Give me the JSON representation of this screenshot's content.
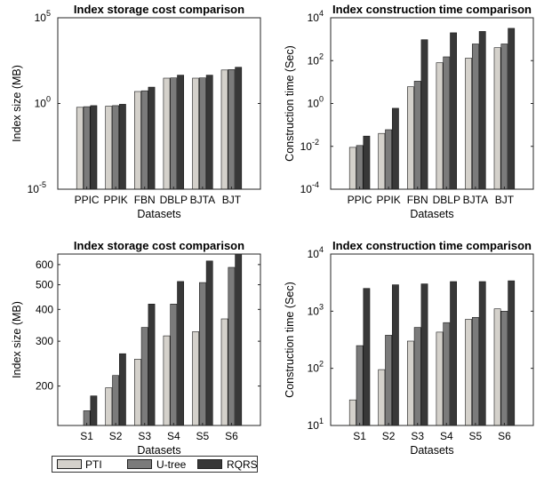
{
  "colors": {
    "PTI": "#d4d1cb",
    "U-tree": "#7b7b7b",
    "RQRS": "#383838"
  },
  "legend": {
    "items": [
      "PTI",
      "U-tree",
      "RQRS"
    ]
  },
  "chart_data": [
    {
      "type": "bar",
      "title": "Index storage cost comparison",
      "xlabel": "Datasets",
      "ylabel": "Index size (MB)",
      "yscale": "log",
      "ylim": [
        1e-05,
        100000
      ],
      "yticks": [
        {
          "value": 1e-05,
          "base": "10",
          "exp": "-5"
        },
        {
          "value": 1,
          "base": "10",
          "exp": "0"
        },
        {
          "value": 100000,
          "base": "10",
          "exp": "5"
        }
      ],
      "categories": [
        "PPIC",
        "PPIK",
        "FBN",
        "DBLP",
        "BJTA",
        "BJT"
      ],
      "series": [
        {
          "name": "PTI",
          "values": [
            0.6,
            0.7,
            5,
            30,
            30,
            90
          ]
        },
        {
          "name": "U-tree",
          "values": [
            0.65,
            0.75,
            5.5,
            31,
            31,
            95
          ]
        },
        {
          "name": "RQRS",
          "values": [
            0.75,
            0.9,
            9,
            45,
            45,
            130
          ]
        }
      ],
      "grid": false
    },
    {
      "type": "bar",
      "title": "Index construction time comparison",
      "xlabel": "Datasets",
      "ylabel": "Construction time (Sec)",
      "yscale": "log",
      "ylim": [
        0.0001,
        10000
      ],
      "yticks": [
        {
          "value": 0.0001,
          "base": "10",
          "exp": "-4"
        },
        {
          "value": 0.01,
          "base": "10",
          "exp": "-2"
        },
        {
          "value": 1,
          "base": "10",
          "exp": "0"
        },
        {
          "value": 100,
          "base": "10",
          "exp": "2"
        },
        {
          "value": 10000,
          "base": "10",
          "exp": "4"
        }
      ],
      "categories": [
        "PPIC",
        "PPIK",
        "FBN",
        "DBLP",
        "BJTA",
        "BJT"
      ],
      "series": [
        {
          "name": "PTI",
          "values": [
            0.009,
            0.04,
            6,
            80,
            130,
            400
          ]
        },
        {
          "name": "U-tree",
          "values": [
            0.011,
            0.06,
            11,
            150,
            600,
            600
          ]
        },
        {
          "name": "RQRS",
          "values": [
            0.03,
            0.6,
            950,
            2000,
            2300,
            3200
          ]
        }
      ],
      "grid": false
    },
    {
      "type": "bar",
      "title": "Index storage cost comparison",
      "xlabel": "Datasets",
      "ylabel": "Index size (MB)",
      "yscale": "log",
      "ylim": [
        140,
        660
      ],
      "yticks": [
        {
          "value": 200,
          "label": "200"
        },
        {
          "value": 300,
          "label": "300"
        },
        {
          "value": 400,
          "label": "400"
        },
        {
          "value": 500,
          "label": "500"
        },
        {
          "value": 600,
          "label": "600"
        }
      ],
      "categories": [
        "S1",
        "S2",
        "S3",
        "S4",
        "S5",
        "S6"
      ],
      "series": [
        {
          "name": "PTI",
          "values": [
            140,
            197,
            255,
            315,
            327,
            367
          ]
        },
        {
          "name": "U-tree",
          "values": [
            160,
            220,
            340,
            420,
            510,
            585
          ]
        },
        {
          "name": "RQRS",
          "values": [
            183,
            268,
            420,
            515,
            620,
            660
          ]
        }
      ],
      "grid": false
    },
    {
      "type": "bar",
      "title": "Index construction time comparison",
      "xlabel": "Datasets",
      "ylabel": "Construction time (Sec)",
      "yscale": "log",
      "ylim": [
        10,
        10000
      ],
      "yticks": [
        {
          "value": 10,
          "base": "10",
          "exp": "1"
        },
        {
          "value": 100,
          "base": "10",
          "exp": "2"
        },
        {
          "value": 1000,
          "base": "10",
          "exp": "3"
        },
        {
          "value": 10000,
          "base": "10",
          "exp": "4"
        }
      ],
      "categories": [
        "S1",
        "S2",
        "S3",
        "S4",
        "S5",
        "S6"
      ],
      "series": [
        {
          "name": "PTI",
          "values": [
            28,
            95,
            300,
            430,
            720,
            1100
          ]
        },
        {
          "name": "U-tree",
          "values": [
            250,
            380,
            520,
            630,
            780,
            1000
          ]
        },
        {
          "name": "RQRS",
          "values": [
            2500,
            2900,
            3000,
            3300,
            3300,
            3400
          ]
        }
      ],
      "grid": false
    }
  ]
}
